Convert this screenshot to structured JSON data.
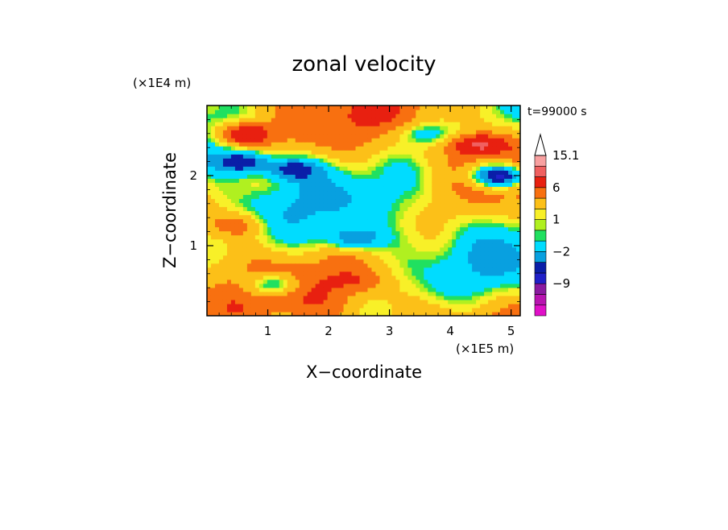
{
  "chart_data": {
    "type": "heatmap",
    "title": "zonal velocity",
    "xlabel": "X−coordinate",
    "ylabel": "Z−coordinate",
    "x_unit": "(×1E5 m)",
    "y_unit": "(×1E4 m)",
    "time_label": "t=99000 s",
    "xlim": [
      0,
      5.15
    ],
    "ylim": [
      0,
      3.0
    ],
    "x_ticks": [
      1,
      2,
      3,
      4,
      5
    ],
    "y_ticks": [
      1,
      2
    ],
    "colorbar": {
      "levels": [
        {
          "value": -15,
          "color": "#e010c8"
        },
        {
          "value": -12,
          "color": "#b814b0"
        },
        {
          "value": -9,
          "color": "#8a1aa0"
        },
        {
          "value": -6,
          "color": "#2020c8"
        },
        {
          "value": -4,
          "color": "#0a1ea8"
        },
        {
          "value": -2,
          "color": "#08a0e0"
        },
        {
          "value": 0,
          "color": "#00dcff"
        },
        {
          "value": 0.5,
          "color": "#20e060"
        },
        {
          "value": 1,
          "color": "#b0f020"
        },
        {
          "value": 2,
          "color": "#f8f028"
        },
        {
          "value": 4,
          "color": "#fcc018"
        },
        {
          "value": 6,
          "color": "#f87010"
        },
        {
          "value": 9,
          "color": "#e82010"
        },
        {
          "value": 12,
          "color": "#f06060"
        },
        {
          "value": 15.1,
          "color": "#f8a0a0"
        }
      ],
      "tick_labels": [
        "15.1",
        "6",
        "1",
        "−2",
        "−9"
      ]
    },
    "grid": false,
    "note_values_estimated": true,
    "features": [
      {
        "x": 0.6,
        "z": 2.6,
        "value": 9
      },
      {
        "x": 4.5,
        "z": 2.45,
        "value": 9
      },
      {
        "x": 0.6,
        "z": 2.2,
        "value": -6
      },
      {
        "x": 1.4,
        "z": 2.1,
        "value": -4
      },
      {
        "x": 4.8,
        "z": 2.0,
        "value": -9
      },
      {
        "x": 2.4,
        "z": 1.1,
        "value": -4
      },
      {
        "x": 1.1,
        "z": 0.45,
        "value": -4
      },
      {
        "x": 3.6,
        "z": 2.6,
        "value": -2
      },
      {
        "x": 0.5,
        "z": 1.3,
        "value": 6
      },
      {
        "x": 2.5,
        "z": 0.5,
        "value": 4
      }
    ]
  }
}
